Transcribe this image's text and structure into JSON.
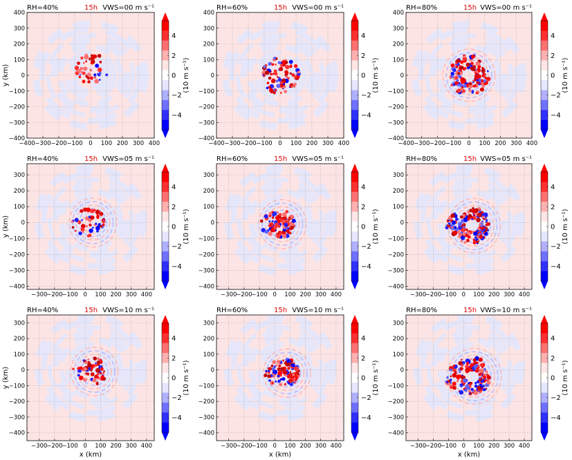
{
  "figure": {
    "time_label": "15h",
    "time_color": "#dd0000",
    "ylabel": "y (km)",
    "xlabel": "x (km)",
    "cbar_label": "(10 m s⁻¹)",
    "cbar_ticks": [
      "4",
      "2",
      "0",
      "−2",
      "−4"
    ],
    "cbar_colors_top_to_bottom": [
      "#ff0000",
      "#ff3030",
      "#ff7070",
      "#ffb0b0",
      "#ffe6e6",
      "#ffffff",
      "#e6e6ff",
      "#b0b0ff",
      "#7070ff",
      "#3030ff",
      "#0000ff"
    ],
    "background_color": "#fde4e4",
    "wash_color": "#e4e6fb"
  },
  "chart_data": [
    {
      "type": "heatmap",
      "rh": "RH=40%",
      "vws": "VWS=00 m s⁻¹",
      "xlim": [
        -400,
        400
      ],
      "ylim": [
        -400,
        400
      ],
      "xticks": [
        "−400",
        "−300",
        "−200",
        "−100",
        "0",
        "100",
        "200",
        "300",
        "400"
      ],
      "yticks": [
        "400",
        "300",
        "200",
        "100",
        "0",
        "−100",
        "−200",
        "−300",
        "−400"
      ],
      "core_center_km": [
        10,
        40
      ],
      "core_radius_km": 100,
      "grid": true
    },
    {
      "type": "heatmap",
      "rh": "RH=60%",
      "vws": "VWS=00 m s⁻¹",
      "xlim": [
        -400,
        400
      ],
      "ylim": [
        -400,
        400
      ],
      "xticks": [
        "−400",
        "−300",
        "−200",
        "−100",
        "0",
        "100",
        "200",
        "300",
        "400"
      ],
      "yticks": [
        "400",
        "300",
        "200",
        "100",
        "0",
        "−100",
        "−200",
        "−300",
        "−400"
      ],
      "core_center_km": [
        0,
        0
      ],
      "core_radius_km": 120,
      "grid": true
    },
    {
      "type": "heatmap",
      "rh": "RH=80%",
      "vws": "VWS=00 m s⁻¹",
      "xlim": [
        -400,
        400
      ],
      "ylim": [
        -400,
        400
      ],
      "xticks": [
        "−400",
        "−300",
        "−200",
        "−100",
        "0",
        "100",
        "200",
        "300",
        "400"
      ],
      "yticks": [
        "400",
        "300",
        "200",
        "100",
        "0",
        "−100",
        "−200",
        "−300",
        "−400"
      ],
      "core_center_km": [
        0,
        0
      ],
      "core_radius_km": 130,
      "grid": true
    },
    {
      "type": "heatmap",
      "rh": "RH=40%",
      "vws": "VWS=05 m s⁻¹",
      "xlim": [
        -380,
        450
      ],
      "ylim": [
        -420,
        370
      ],
      "xticks": [
        "−300",
        "−200",
        "−100",
        "0",
        "100",
        "200",
        "300",
        "400"
      ],
      "yticks": [
        "300",
        "200",
        "100",
        "0",
        "−100",
        "−200",
        "−300",
        "−400"
      ],
      "core_center_km": [
        50,
        0
      ],
      "core_radius_km": 110,
      "grid": true
    },
    {
      "type": "heatmap",
      "rh": "RH=60%",
      "vws": "VWS=05 m s⁻¹",
      "xlim": [
        -380,
        450
      ],
      "ylim": [
        -420,
        370
      ],
      "xticks": [
        "−300",
        "−200",
        "−100",
        "0",
        "100",
        "200",
        "300",
        "400"
      ],
      "yticks": [
        "300",
        "200",
        "100",
        "0",
        "−100",
        "−200",
        "−300",
        "−400"
      ],
      "core_center_km": [
        50,
        -10
      ],
      "core_radius_km": 110,
      "grid": true
    },
    {
      "type": "heatmap",
      "rh": "RH=80%",
      "vws": "VWS=05 m s⁻¹",
      "xlim": [
        -380,
        450
      ],
      "ylim": [
        -420,
        370
      ],
      "xticks": [
        "−300",
        "−200",
        "−100",
        "0",
        "100",
        "200",
        "300",
        "400"
      ],
      "yticks": [
        "300",
        "200",
        "100",
        "0",
        "−100",
        "−200",
        "−300",
        "−400"
      ],
      "core_center_km": [
        70,
        -20
      ],
      "core_radius_km": 140,
      "grid": true
    },
    {
      "type": "heatmap",
      "rh": "RH=40%",
      "vws": "VWS=10 m s⁻¹",
      "xlim": [
        -380,
        450
      ],
      "ylim": [
        -450,
        350
      ],
      "xticks": [
        "−300",
        "−200",
        "−100",
        "0",
        "100",
        "200",
        "300",
        "400"
      ],
      "yticks": [
        "300",
        "200",
        "100",
        "0",
        "−100",
        "−200",
        "−300",
        "−400"
      ],
      "core_center_km": [
        60,
        -10
      ],
      "core_radius_km": 110,
      "grid": true
    },
    {
      "type": "heatmap",
      "rh": "RH=60%",
      "vws": "VWS=10 m s⁻¹",
      "xlim": [
        -380,
        450
      ],
      "ylim": [
        -450,
        350
      ],
      "xticks": [
        "−300",
        "−200",
        "−100",
        "0",
        "100",
        "200",
        "300",
        "400"
      ],
      "yticks": [
        "300",
        "200",
        "100",
        "0",
        "−100",
        "−200",
        "−300",
        "−400"
      ],
      "core_center_km": [
        80,
        -20
      ],
      "core_radius_km": 110,
      "grid": true
    },
    {
      "type": "heatmap",
      "rh": "RH=80%",
      "vws": "VWS=10 m s⁻¹",
      "xlim": [
        -380,
        450
      ],
      "ylim": [
        -450,
        350
      ],
      "xticks": [
        "−300",
        "−200",
        "−100",
        "0",
        "100",
        "200",
        "300",
        "400"
      ],
      "yticks": [
        "300",
        "200",
        "100",
        "0",
        "−100",
        "−200",
        "−300",
        "−400"
      ],
      "core_center_km": [
        70,
        -40
      ],
      "core_radius_km": 150,
      "grid": true
    }
  ]
}
